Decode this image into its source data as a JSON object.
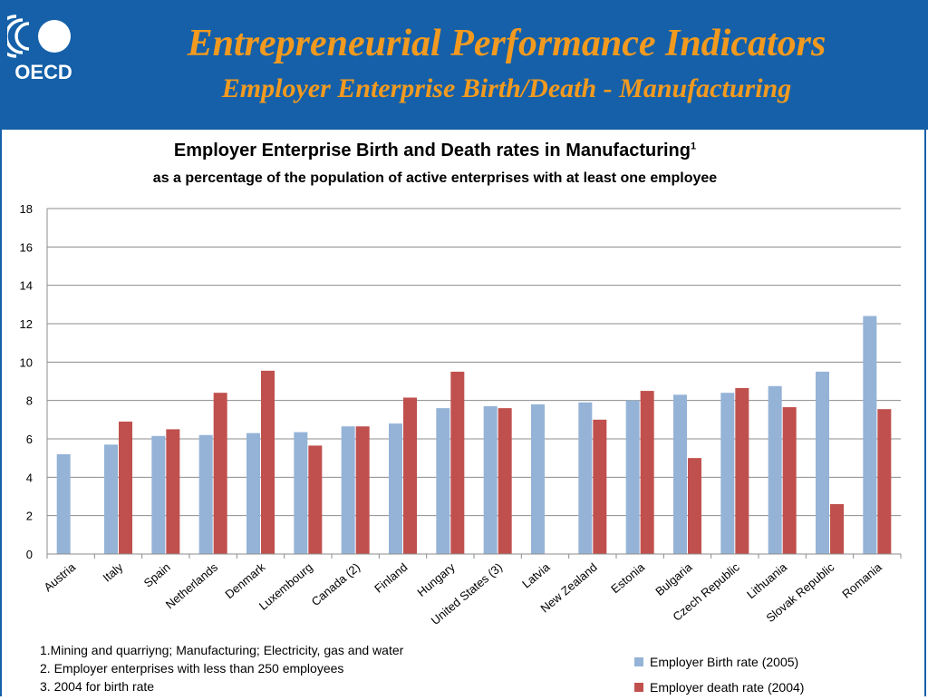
{
  "header": {
    "title": "Entrepreneurial Performance Indicators",
    "subtitle": "Employer Enterprise Birth/Death - Manufacturing",
    "logo_text": "OECD"
  },
  "chart_heading": {
    "title": "Employer Enterprise Birth and Death rates in Manufacturing",
    "title_sup": "1",
    "subtitle": "as a percentage of the population of active enterprises with at least one employee"
  },
  "notes": [
    "1.Mining and quarriyng; Manufacturing; Electricity, gas and water",
    "2. Employer enterprises with less than 250 employees",
    "3. 2004 for birth rate"
  ],
  "chart_data": {
    "type": "bar",
    "title": "Employer Enterprise Birth and Death rates in Manufacturing",
    "subtitle": "as a percentage of the population of active enterprises with at least one employee",
    "categories": [
      "Austria",
      "Italy",
      "Spain",
      "Netherlands",
      "Denmark",
      "Luxembourg",
      "Canada (2)",
      "Finland",
      "Hungary",
      "United States (3)",
      "Latvia",
      "New Zealand",
      "Estonia",
      "Bulgaria",
      "Czech Republic",
      "Lithuania",
      "Slovak Republic",
      "Romania"
    ],
    "series": [
      {
        "name": "Employer Birth rate (2005)",
        "color": "#95b3d7",
        "values": [
          5.2,
          5.7,
          6.15,
          6.2,
          6.3,
          6.35,
          6.65,
          6.8,
          7.6,
          7.7,
          7.8,
          7.9,
          8.0,
          8.3,
          8.4,
          8.75,
          9.5,
          12.4
        ]
      },
      {
        "name": "Employer death rate (2004)",
        "color": "#c0504d",
        "values": [
          null,
          6.9,
          6.5,
          8.4,
          9.55,
          5.65,
          6.65,
          8.15,
          9.5,
          7.6,
          null,
          7.0,
          8.5,
          5.0,
          8.65,
          7.65,
          2.6,
          7.55
        ]
      }
    ],
    "y_ticks": [
      0,
      2,
      4,
      6,
      8,
      10,
      12,
      14,
      16,
      18
    ],
    "ylim": [
      0,
      18
    ],
    "grid": true,
    "legend_position": "bottom-right"
  }
}
